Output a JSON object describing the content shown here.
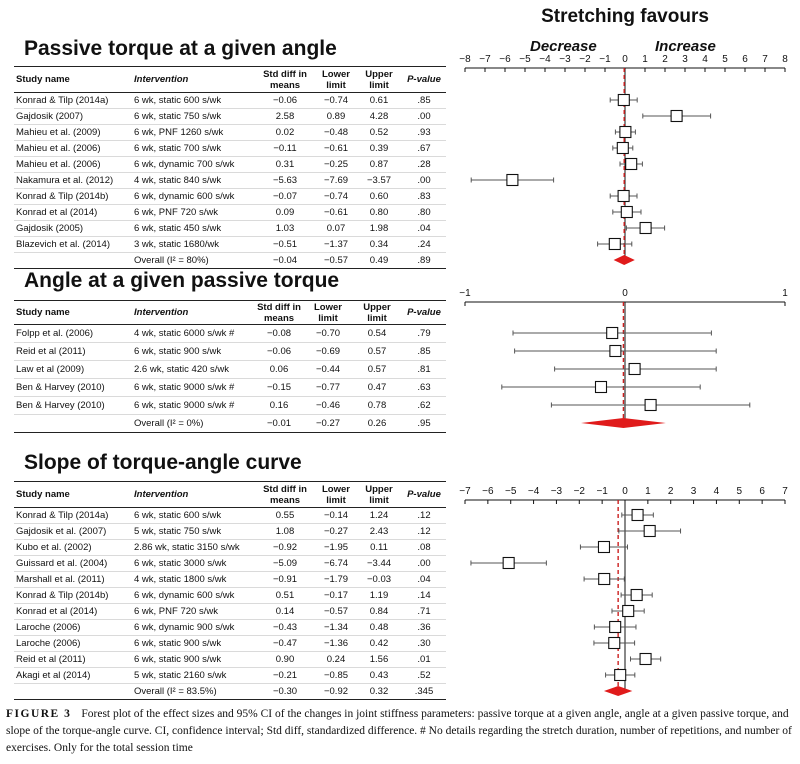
{
  "stretching_favours": "Stretching favours",
  "decrease_label": "Decrease",
  "increase_label": "Increase",
  "columns": {
    "study": "Study name",
    "intervention": "Intervention",
    "std_diff": "Std diff in means",
    "lower": "Lower limit",
    "upper": "Upper limit",
    "p": "P-value"
  },
  "sections": [
    {
      "title": "Passive torque at a given angle",
      "axis_ticks": [
        "−8",
        "−7",
        "−6",
        "−5",
        "−4",
        "−3",
        "−2",
        "−1",
        "0",
        "1",
        "2",
        "3",
        "4",
        "5",
        "6",
        "7",
        "8"
      ],
      "rows": [
        {
          "study": "Konrad & Tilp (2014a)",
          "intervention": "6 wk, static 600 s/wk",
          "sd": "−0.06",
          "lower": "−0.74",
          "upper": "0.61",
          "p": ".85"
        },
        {
          "study": "Gajdosik (2007)",
          "intervention": "6 wk, static 750 s/wk",
          "sd": "2.58",
          "lower": "0.89",
          "upper": "4.28",
          "p": ".00"
        },
        {
          "study": "Mahieu et al. (2009)",
          "intervention": "6 wk, PNF 1260 s/wk",
          "sd": "0.02",
          "lower": "−0.48",
          "upper": "0.52",
          "p": ".93"
        },
        {
          "study": "Mahieu et al. (2006)",
          "intervention": "6 wk, static 700 s/wk",
          "sd": "−0.11",
          "lower": "−0.61",
          "upper": "0.39",
          "p": ".67"
        },
        {
          "study": "Mahieu et al. (2006)",
          "intervention": "6 wk, dynamic 700 s/wk",
          "sd": "0.31",
          "lower": "−0.25",
          "upper": "0.87",
          "p": ".28"
        },
        {
          "study": "Nakamura et al. (2012)",
          "intervention": "4 wk, static 840 s/wk",
          "sd": "−5.63",
          "lower": "−7.69",
          "upper": "−3.57",
          "p": ".00"
        },
        {
          "study": "Konrad & Tilp (2014b)",
          "intervention": "6 wk,  dynamic 600 s/wk",
          "sd": "−0.07",
          "lower": "−0.74",
          "upper": "0.60",
          "p": ".83"
        },
        {
          "study": "Konrad et al (2014)",
          "intervention": "6 wk,  PNF 720 s/wk",
          "sd": "0.09",
          "lower": "−0.61",
          "upper": "0.80",
          "p": ".80"
        },
        {
          "study": "Gajdosik (2005)",
          "intervention": "6 wk,  static 450 s/wk",
          "sd": "1.03",
          "lower": "0.07",
          "upper": "1.98",
          "p": ".04"
        },
        {
          "study": "Blazevich et al. (2014)",
          "intervention": "3 wk, static 1680/wk",
          "sd": "−0.51",
          "lower": "−1.37",
          "upper": "0.34",
          "p": ".24"
        }
      ],
      "overall": {
        "label": "Overall (I² = 80%)",
        "sd": "−0.04",
        "lower": "−0.57",
        "upper": "0.49",
        "p": ".89"
      }
    },
    {
      "title": "Angle at a given passive torque",
      "axis_ticks": [
        "−1",
        "0",
        "1"
      ],
      "rows": [
        {
          "study": "Folpp et al. (2006)",
          "intervention": "4 wk, static 6000 s/wk #",
          "sd": "−0.08",
          "lower": "−0.70",
          "upper": "0.54",
          "p": ".79"
        },
        {
          "study": "Reid et al (2011)",
          "intervention": "6 wk, static 900 s/wk",
          "sd": "−0.06",
          "lower": "−0.69",
          "upper": "0.57",
          "p": ".85"
        },
        {
          "study": "Law et al (2009)",
          "intervention": "2.6 wk, static 420 s/wk",
          "sd": "0.06",
          "lower": "−0.44",
          "upper": "0.57",
          "p": ".81"
        },
        {
          "study": "Ben & Harvey (2010)",
          "intervention": "6 wk, static 9000 s/wk #",
          "sd": "−0.15",
          "lower": "−0.77",
          "upper": "0.47",
          "p": ".63"
        },
        {
          "study": "Ben & Harvey (2010)",
          "intervention": "6 wk, static 9000 s/wk #",
          "sd": "0.16",
          "lower": "−0.46",
          "upper": "0.78",
          "p": ".62"
        }
      ],
      "overall": {
        "label": "Overall (I² = 0%)",
        "sd": "−0.01",
        "lower": "−0.27",
        "upper": "0.26",
        "p": ".95"
      }
    },
    {
      "title": "Slope of torque-angle curve",
      "axis_ticks": [
        "−7",
        "−6",
        "−5",
        "−4",
        "−3",
        "−2",
        "−1",
        "0",
        "1",
        "2",
        "3",
        "4",
        "5",
        "6",
        "7"
      ],
      "rows": [
        {
          "study": "Konrad & Tilp (2014a)",
          "intervention": "6 wk, static 600 s/wk",
          "sd": "0.55",
          "lower": "−0.14",
          "upper": "1.24",
          "p": ".12"
        },
        {
          "study": "Gajdosik et al. (2007)",
          "intervention": "5 wk, static 750 s/wk",
          "sd": "1.08",
          "lower": "−0.27",
          "upper": "2.43",
          "p": ".12"
        },
        {
          "study": "Kubo et al. (2002)",
          "intervention": "2.86 wk, static 3150 s/wk",
          "sd": "−0.92",
          "lower": "−1.95",
          "upper": "0.11",
          "p": ".08"
        },
        {
          "study": "Guissard et al. (2004)",
          "intervention": "6 wk, static 3000 s/wk",
          "sd": "−5.09",
          "lower": "−6.74",
          "upper": "−3.44",
          "p": ".00"
        },
        {
          "study": "Marshall et al. (2011)",
          "intervention": "4 wk, static 1800 s/wk",
          "sd": "−0.91",
          "lower": "−1.79",
          "upper": "−0.03",
          "p": ".04"
        },
        {
          "study": "Konrad & Tilp (2014b)",
          "intervention": "6 wk, dynamic 600 s/wk",
          "sd": "0.51",
          "lower": "−0.17",
          "upper": "1.19",
          "p": ".14"
        },
        {
          "study": "Konrad et al (2014)",
          "intervention": "6 wk, PNF 720 s/wk",
          "sd": "0.14",
          "lower": "−0.57",
          "upper": "0.84",
          "p": ".71"
        },
        {
          "study": "Laroche (2006)",
          "intervention": "6 wk, dynamic 900 s/wk",
          "sd": "−0.43",
          "lower": "−1.34",
          "upper": "0.48",
          "p": ".36"
        },
        {
          "study": "Laroche (2006)",
          "intervention": "6 wk, static 900 s/wk",
          "sd": "−0.47",
          "lower": "−1.36",
          "upper": "0.42",
          "p": ".30"
        },
        {
          "study": "Reid et al (2011)",
          "intervention": "6 wk, static 900 s/wk",
          "sd": "0.90",
          "lower": "0.24",
          "upper": "1.56",
          "p": ".01"
        },
        {
          "study": "Akagi et al (2014)",
          "intervention": "5 wk, static 2160 s/wk",
          "sd": "−0.21",
          "lower": "−0.85",
          "upper": "0.43",
          "p": ".52"
        }
      ],
      "overall": {
        "label": "Overall (I² = 83.5%)",
        "sd": "−0.30",
        "lower": "−0.92",
        "upper": "0.32",
        "p": ".345"
      }
    }
  ],
  "caption": {
    "label": "FIGURE 3",
    "text": "Forest plot of the effect sizes and 95% CI of the changes in joint stiffness parameters: passive torque at a given angle, angle at a given passive torque, and slope of the torque-angle curve. CI, confidence interval; Std diff, standardized difference. # No details regarding the stretch duration, number of repetitions, and number of exercises. Only for the total session time"
  },
  "chart_data": [
    {
      "type": "forest",
      "title": "Passive torque at a given angle",
      "xlim": [
        -8,
        8
      ],
      "estimates": [
        -0.06,
        2.58,
        0.02,
        -0.11,
        0.31,
        -5.63,
        -0.07,
        0.09,
        1.03,
        -0.51
      ],
      "lower": [
        -0.74,
        0.89,
        -0.48,
        -0.61,
        -0.25,
        -7.69,
        -0.74,
        -0.61,
        0.07,
        -1.37
      ],
      "upper": [
        0.61,
        4.28,
        0.52,
        0.39,
        0.87,
        -3.57,
        0.6,
        0.8,
        1.98,
        0.34
      ],
      "overall": {
        "estimate": -0.04,
        "lower": -0.57,
        "upper": 0.49
      }
    },
    {
      "type": "forest",
      "title": "Angle at a given passive torque",
      "xlim": [
        -1,
        1
      ],
      "estimates": [
        -0.08,
        -0.06,
        0.06,
        -0.15,
        0.16
      ],
      "lower": [
        -0.7,
        -0.69,
        -0.44,
        -0.77,
        -0.46
      ],
      "upper": [
        0.54,
        0.57,
        0.57,
        0.47,
        0.78
      ],
      "overall": {
        "estimate": -0.01,
        "lower": -0.27,
        "upper": 0.26
      }
    },
    {
      "type": "forest",
      "title": "Slope of torque-angle curve",
      "xlim": [
        -7,
        7
      ],
      "estimates": [
        0.55,
        1.08,
        -0.92,
        -5.09,
        -0.91,
        0.51,
        0.14,
        -0.43,
        -0.47,
        0.9,
        -0.21
      ],
      "lower": [
        -0.14,
        -0.27,
        -1.95,
        -6.74,
        -1.79,
        -0.17,
        -0.57,
        -1.34,
        -1.36,
        0.24,
        -0.85
      ],
      "upper": [
        1.24,
        2.43,
        0.11,
        -3.44,
        -0.03,
        1.19,
        0.84,
        0.48,
        0.42,
        1.56,
        0.43
      ],
      "overall": {
        "estimate": -0.3,
        "lower": -0.92,
        "upper": 0.32
      }
    }
  ]
}
